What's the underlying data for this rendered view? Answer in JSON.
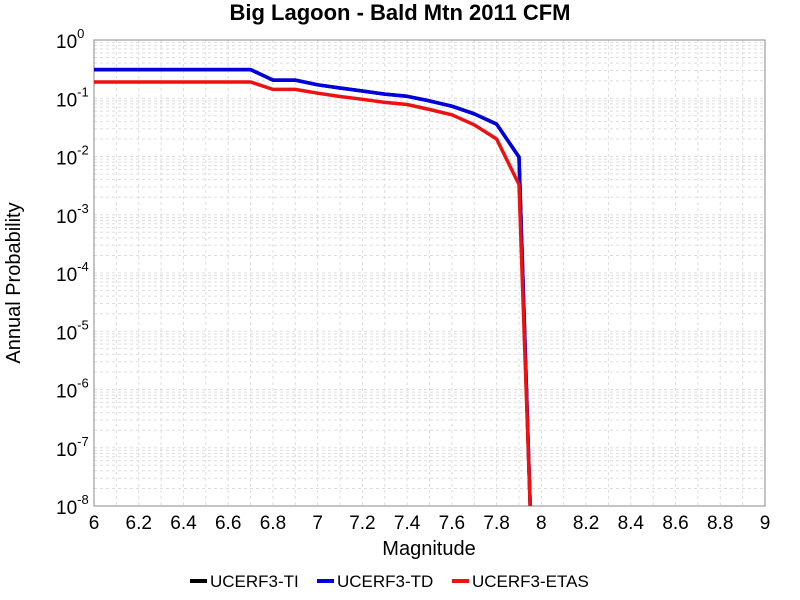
{
  "chart_data": {
    "type": "line",
    "title": "Big Lagoon - Bald Mtn 2011 CFM",
    "xlabel": "Magnitude",
    "ylabel": "Annual Probability",
    "xlim": [
      6,
      9
    ],
    "ylim": [
      1e-08,
      1
    ],
    "y_scale": "log",
    "grid": true,
    "legend_position": "bottom",
    "x_ticks": [
      "6",
      "6.2",
      "6.4",
      "6.6",
      "6.8",
      "7",
      "7.2",
      "7.4",
      "7.6",
      "7.8",
      "8",
      "8.2",
      "8.4",
      "8.6",
      "8.8",
      "9"
    ],
    "y_ticks": [
      {
        "base": "10",
        "exp": "0"
      },
      {
        "base": "10",
        "exp": "-1"
      },
      {
        "base": "10",
        "exp": "-2"
      },
      {
        "base": "10",
        "exp": "-3"
      },
      {
        "base": "10",
        "exp": "-4"
      },
      {
        "base": "10",
        "exp": "-5"
      },
      {
        "base": "10",
        "exp": "-6"
      },
      {
        "base": "10",
        "exp": "-7"
      },
      {
        "base": "10",
        "exp": "-8"
      }
    ],
    "series": [
      {
        "name": "UCERF3-TI",
        "color": "#000000",
        "x": [
          6.0,
          6.7,
          6.8,
          6.9,
          7.0,
          7.1,
          7.2,
          7.3,
          7.4,
          7.5,
          7.6,
          7.7,
          7.8,
          7.9,
          7.95
        ],
        "y": [
          0.31,
          0.31,
          0.205,
          0.205,
          0.17,
          0.15,
          0.133,
          0.118,
          0.108,
          0.09,
          0.073,
          0.054,
          0.036,
          0.0098,
          1e-08
        ]
      },
      {
        "name": "UCERF3-TD",
        "color": "#0000dd",
        "x": [
          6.0,
          6.7,
          6.8,
          6.9,
          7.0,
          7.1,
          7.2,
          7.3,
          7.4,
          7.5,
          7.6,
          7.7,
          7.8,
          7.9,
          7.95
        ],
        "y": [
          0.31,
          0.31,
          0.205,
          0.205,
          0.17,
          0.15,
          0.133,
          0.118,
          0.108,
          0.09,
          0.073,
          0.054,
          0.036,
          0.0098,
          1e-08
        ]
      },
      {
        "name": "UCERF3-ETAS",
        "color": "#ee1111",
        "x": [
          6.0,
          6.7,
          6.8,
          6.9,
          7.0,
          7.1,
          7.2,
          7.3,
          7.4,
          7.5,
          7.6,
          7.7,
          7.8,
          7.9,
          7.95
        ],
        "y": [
          0.19,
          0.19,
          0.142,
          0.142,
          0.122,
          0.107,
          0.096,
          0.085,
          0.078,
          0.064,
          0.052,
          0.035,
          0.02,
          0.0033,
          1e-08
        ]
      }
    ]
  }
}
